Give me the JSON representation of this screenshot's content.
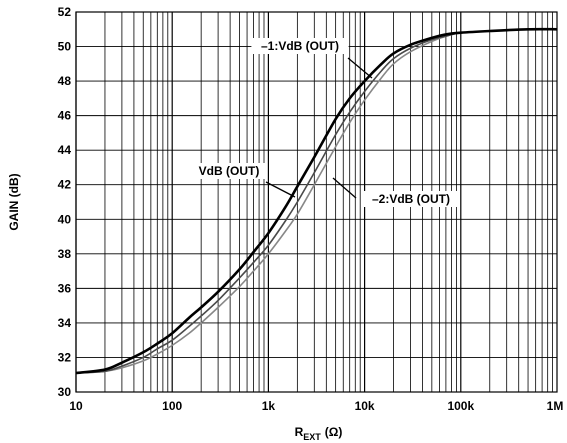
{
  "chart_data": {
    "type": "line",
    "title": "",
    "xlabel": {
      "main": "R",
      "sub": "EXT",
      "unit": "(Ω)"
    },
    "ylabel": "GAIN (dB)",
    "xscale": "log",
    "xlim": [
      10,
      1000000
    ],
    "ylim": [
      30,
      52
    ],
    "grid": true,
    "x_ticks": [
      {
        "value": 10,
        "label": "10"
      },
      {
        "value": 100,
        "label": "100"
      },
      {
        "value": 1000,
        "label": "1k"
      },
      {
        "value": 10000,
        "label": "10k"
      },
      {
        "value": 100000,
        "label": "100k"
      },
      {
        "value": 1000000,
        "label": "1M"
      }
    ],
    "y_ticks": [
      30,
      32,
      34,
      36,
      38,
      40,
      42,
      44,
      46,
      48,
      50,
      52
    ],
    "series": [
      {
        "name": "–1:VdB (OUT)",
        "color": "#000000",
        "width": 2.6,
        "x": [
          10,
          20,
          30,
          50,
          70,
          100,
          150,
          200,
          300,
          500,
          700,
          1000,
          1500,
          2000,
          3000,
          5000,
          7000,
          10000,
          15000,
          20000,
          30000,
          50000,
          70000,
          100000,
          200000,
          500000,
          1000000
        ],
        "y": [
          31.1,
          31.3,
          31.7,
          32.3,
          32.8,
          33.4,
          34.3,
          34.9,
          35.8,
          37.1,
          38.1,
          39.2,
          40.7,
          41.9,
          43.6,
          45.8,
          47.0,
          48.0,
          49.0,
          49.6,
          50.1,
          50.5,
          50.7,
          50.8,
          50.9,
          51.0,
          51.0
        ]
      },
      {
        "name": "VdB (OUT)",
        "color": "#4a4a4a",
        "width": 1.6,
        "x": [
          10,
          20,
          30,
          50,
          70,
          100,
          150,
          200,
          300,
          500,
          700,
          1000,
          1500,
          2000,
          3000,
          5000,
          7000,
          10000,
          15000,
          20000,
          30000,
          50000,
          70000,
          100000,
          200000,
          500000,
          1000000
        ],
        "y": [
          31.1,
          31.2,
          31.5,
          32.0,
          32.5,
          33.0,
          33.8,
          34.4,
          35.3,
          36.6,
          37.5,
          38.5,
          39.9,
          41.0,
          42.7,
          44.9,
          46.2,
          47.4,
          48.6,
          49.3,
          49.9,
          50.4,
          50.6,
          50.8,
          50.9,
          51.0,
          51.0
        ]
      },
      {
        "name": "–2:VdB (OUT)",
        "color": "#888888",
        "width": 1.6,
        "x": [
          10,
          20,
          30,
          50,
          70,
          100,
          150,
          200,
          300,
          500,
          700,
          1000,
          1500,
          2000,
          3000,
          5000,
          7000,
          10000,
          15000,
          20000,
          30000,
          50000,
          70000,
          100000,
          200000,
          500000,
          1000000
        ],
        "y": [
          31.1,
          31.2,
          31.4,
          31.8,
          32.2,
          32.7,
          33.4,
          34.0,
          34.9,
          36.1,
          37.0,
          38.0,
          39.3,
          40.3,
          42.0,
          44.2,
          45.6,
          46.9,
          48.2,
          49.0,
          49.7,
          50.3,
          50.6,
          50.8,
          50.9,
          51.0,
          51.0
        ]
      }
    ],
    "annotations": [
      {
        "text": "–1:VdB (OUT)",
        "series": 0
      },
      {
        "text": "VdB (OUT)",
        "series": 1
      },
      {
        "text": "–2:VdB (OUT)",
        "series": 2
      }
    ]
  }
}
